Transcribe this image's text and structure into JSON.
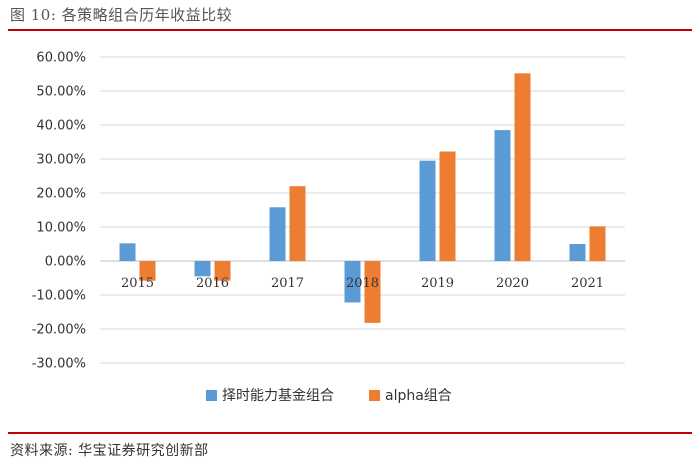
{
  "figure": {
    "title": "图 10:  各策略组合历年收益比较",
    "source": "资料来源:  华宝证券研究创新部"
  },
  "chart_data": {
    "type": "bar",
    "categories": [
      "2015",
      "2016",
      "2017",
      "2018",
      "2019",
      "2020",
      "2021"
    ],
    "series": [
      {
        "name": "择时能力基金组合",
        "color": "#5b9bd5",
        "values": [
          5.2,
          -4.5,
          15.8,
          -12.2,
          29.5,
          38.5,
          5.0
        ]
      },
      {
        "name": "alpha组合",
        "color": "#ed7d31",
        "values": [
          -5.8,
          -5.8,
          22.0,
          -18.2,
          32.2,
          55.2,
          10.2
        ]
      }
    ],
    "ylim": [
      -30,
      60
    ],
    "yticks": [
      60,
      50,
      40,
      30,
      20,
      10,
      0,
      -10,
      -20,
      -30
    ],
    "ytick_labels": [
      "60.00%",
      "50.00%",
      "40.00%",
      "30.00%",
      "20.00%",
      "10.00%",
      "0.00%",
      "-10.00%",
      "-20.00%",
      "-30.00%"
    ],
    "grid": true,
    "legend_position": "bottom",
    "xlabel": "",
    "ylabel": ""
  }
}
